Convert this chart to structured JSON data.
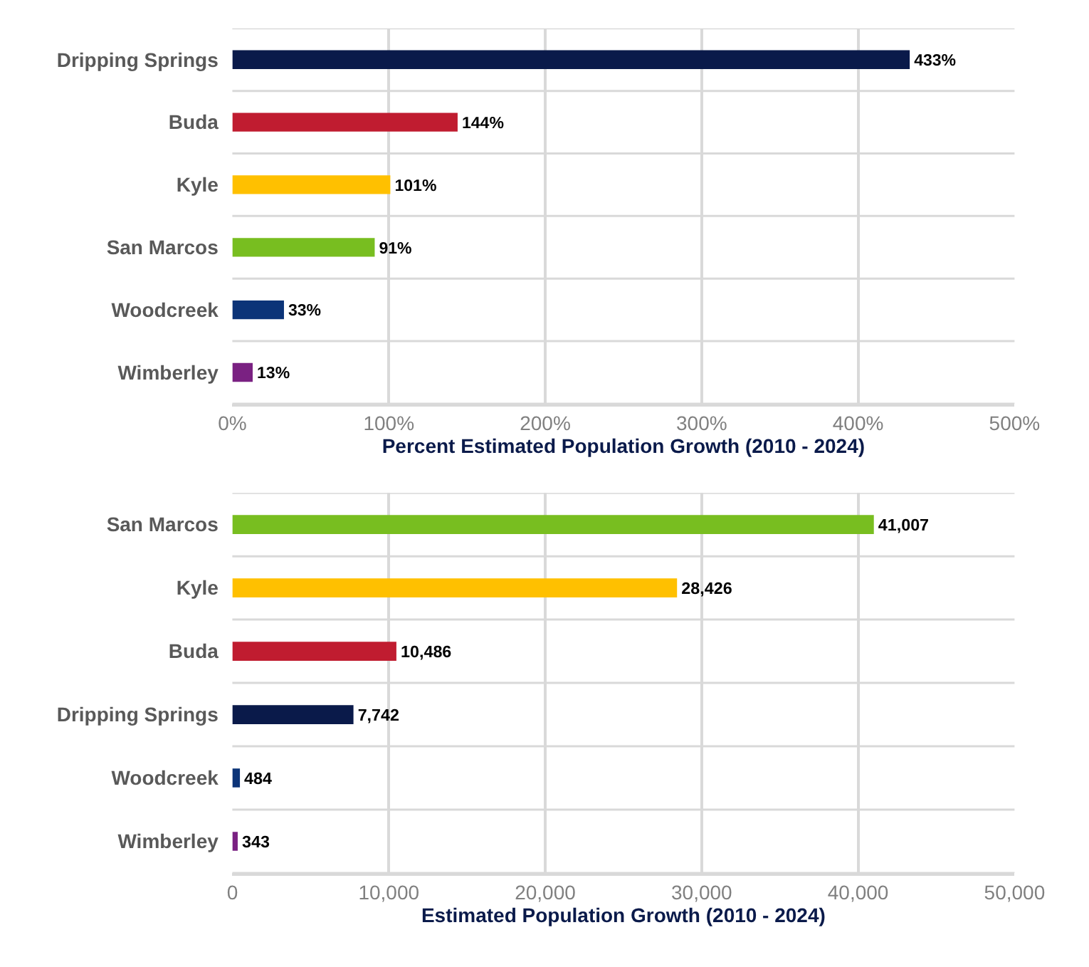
{
  "chart_data": [
    {
      "type": "bar",
      "orientation": "horizontal",
      "xlabel": "Percent Estimated Population Growth (2010 - 2024)",
      "categories": [
        "Dripping Springs",
        "Buda",
        "Kyle",
        "San Marcos",
        "Woodcreek",
        "Wimberley"
      ],
      "values": [
        433,
        144,
        101,
        91,
        33,
        13
      ],
      "colors": [
        "#0a1a4a",
        "#c01c30",
        "#ffc000",
        "#78be20",
        "#0c3478",
        "#7a2182"
      ],
      "value_labels": [
        "433%",
        "144%",
        "101%",
        "91%",
        "33%",
        "13%"
      ],
      "xlim": [
        0,
        500
      ],
      "xticks": [
        {
          "value": 0,
          "label": "0%"
        },
        {
          "value": 100,
          "label": "100%"
        },
        {
          "value": 200,
          "label": "200%"
        },
        {
          "value": 300,
          "label": "300%"
        },
        {
          "value": 400,
          "label": "400%"
        },
        {
          "value": 500,
          "label": "500%"
        }
      ],
      "grid": true
    },
    {
      "type": "bar",
      "orientation": "horizontal",
      "xlabel": "Estimated Population Growth (2010 - 2024)",
      "categories": [
        "San Marcos",
        "Kyle",
        "Buda",
        "Dripping Springs",
        "Woodcreek",
        "Wimberley"
      ],
      "values": [
        41007,
        28426,
        10486,
        7742,
        484,
        343
      ],
      "colors": [
        "#78be20",
        "#ffc000",
        "#c01c30",
        "#0a1a4a",
        "#0c3478",
        "#7a2182"
      ],
      "value_labels": [
        "41,007",
        "28,426",
        "10,486",
        "7,742",
        "484",
        "343"
      ],
      "xlim": [
        0,
        50000
      ],
      "xticks": [
        {
          "value": 0,
          "label": "0"
        },
        {
          "value": 10000,
          "label": "10,000"
        },
        {
          "value": 20000,
          "label": "20,000"
        },
        {
          "value": 30000,
          "label": "30,000"
        },
        {
          "value": 40000,
          "label": "40,000"
        },
        {
          "value": 50000,
          "label": "50,000"
        }
      ],
      "grid": true
    }
  ]
}
